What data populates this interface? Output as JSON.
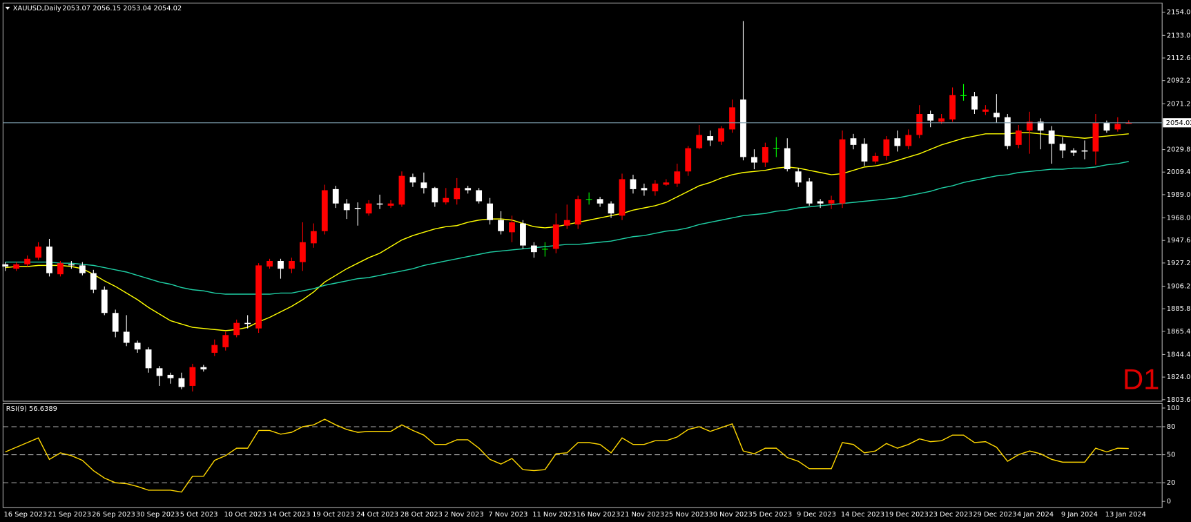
{
  "chart_data": [
    {
      "type": "candlestick",
      "title": "XAUUSD,Daily",
      "subtitle": "2053.07 2056.15 2053.04 2054.02",
      "watermark": "D1",
      "categories": [
        "16 Sep 2023",
        null,
        null,
        null,
        "21 Sep 2023",
        null,
        null,
        null,
        "26 Sep 2023",
        null,
        null,
        null,
        "30 Sep 2023",
        null,
        null,
        null,
        "5 Oct 2023",
        null,
        null,
        null,
        "10 Oct 2023",
        null,
        null,
        null,
        "14 Oct 2023",
        null,
        null,
        null,
        "19 Oct 2023",
        null,
        null,
        null,
        "24 Oct 2023",
        null,
        null,
        null,
        "28 Oct 2023",
        null,
        null,
        null,
        "2 Nov 2023",
        null,
        null,
        null,
        "7 Nov 2023",
        null,
        null,
        null,
        "11 Nov 2023",
        null,
        null,
        null,
        "16 Nov 2023",
        null,
        null,
        null,
        "21 Nov 2023",
        null,
        null,
        null,
        "25 Nov 2023",
        null,
        null,
        null,
        "30 Nov 2023",
        null,
        null,
        null,
        "5 Dec 2023",
        null,
        null,
        null,
        "9 Dec 2023",
        null,
        null,
        null,
        "14 Dec 2023",
        null,
        null,
        null,
        "19 Dec 2023",
        null,
        null,
        null,
        "23 Dec 2023",
        null,
        null,
        null,
        "29 Dec 2023",
        null,
        null,
        null,
        "4 Jan 2024",
        null,
        null,
        null,
        "9 Jan 2024",
        null,
        null,
        null,
        "13 Jan 2024",
        null,
        null
      ],
      "open": [
        1926,
        1922,
        1926,
        1932,
        1942,
        1917,
        1926,
        1925,
        1918,
        1903,
        1882,
        1865,
        1855,
        1849,
        1832,
        1826,
        1823,
        1816,
        1833,
        1846,
        1851,
        1862,
        1873,
        1868,
        1924,
        1929,
        1922,
        1928,
        1945,
        1956,
        1994,
        1981,
        1977,
        1972,
        1981,
        1979,
        1980,
        2005,
        2000,
        1995,
        1982,
        1985,
        1995,
        1993,
        1981,
        1966,
        1955,
        1963,
        1943,
        1940,
        1940,
        1961,
        1962,
        1985,
        1985,
        1981,
        1970,
        2003,
        1995,
        1992,
        1998,
        1999,
        2010,
        2031,
        2042,
        2037,
        2048,
        2075,
        2023,
        2018,
        2031,
        2031,
        2010,
        2001,
        1983,
        1981,
        1981,
        2040,
        2035,
        2019,
        2024,
        2040,
        2033,
        2043,
        2062,
        2055,
        2057,
        2079,
        2078,
        2064,
        2063,
        2059,
        2034,
        2047,
        2055,
        2047,
        2035,
        2029,
        2029,
        2028,
        2054,
        2048,
        2053.07
      ],
      "high": [
        1928,
        1928,
        1934,
        1946,
        1949,
        1929,
        1929,
        1928,
        1921,
        1906,
        1885,
        1880,
        1857,
        1851,
        1834,
        1828,
        1828,
        1836,
        1835,
        1858,
        1865,
        1876,
        1880,
        1927,
        1931,
        1931,
        1932,
        1964,
        1963,
        1998,
        1997,
        1985,
        1982,
        1984,
        1989,
        1984,
        2010,
        2008,
        2009,
        1996,
        1995,
        2004,
        1997,
        1995,
        1986,
        1974,
        1970,
        1966,
        1946,
        1946,
        1972,
        1980,
        1988,
        1991,
        1987,
        1983,
        2008,
        2007,
        1999,
        2002,
        2003,
        2017,
        2033,
        2052,
        2047,
        2051,
        2075,
        2146,
        2030,
        2036,
        2041,
        2040,
        2013,
        2004,
        1985,
        1988,
        2047,
        2044,
        2040,
        2027,
        2042,
        2047,
        2048,
        2070,
        2065,
        2062,
        2086,
        2089,
        2082,
        2070,
        2080,
        2062,
        2052,
        2064,
        2058,
        2051,
        2041,
        2031,
        2038,
        2062,
        2056,
        2059,
        2056.15
      ],
      "low": [
        1920,
        1920,
        1924,
        1930,
        1915,
        1915,
        1922,
        1916,
        1900,
        1880,
        1860,
        1852,
        1846,
        1828,
        1816,
        1818,
        1813,
        1811,
        1829,
        1843,
        1848,
        1860,
        1868,
        1864,
        1922,
        1913,
        1918,
        1920,
        1941,
        1953,
        1977,
        1967,
        1961,
        1970,
        1976,
        1977,
        1978,
        1996,
        1990,
        1978,
        1980,
        1980,
        1990,
        1981,
        1962,
        1953,
        1946,
        1940,
        1932,
        1933,
        1936,
        1958,
        1958,
        1980,
        1978,
        1968,
        1966,
        1990,
        1988,
        1988,
        1997,
        1996,
        2006,
        2030,
        2033,
        2034,
        2045,
        2020,
        2012,
        2014,
        2023,
        2010,
        1996,
        1979,
        1977,
        1976,
        1977,
        2030,
        2015,
        2017,
        2020,
        2028,
        2030,
        2040,
        2050,
        2053,
        2055,
        2074,
        2062,
        2061,
        2054,
        2030,
        2031,
        2026,
        2030,
        2017,
        2022,
        2024,
        2021,
        2016,
        2045,
        2046,
        2053.04
      ],
      "close": [
        1924,
        1926,
        1931,
        1942,
        1918,
        1927,
        1925,
        1918,
        1903,
        1882,
        1865,
        1855,
        1849,
        1832,
        1825,
        1823,
        1815,
        1833,
        1831,
        1853,
        1862,
        1873,
        1872,
        1925,
        1929,
        1922,
        1929,
        1946,
        1956,
        1993,
        1981,
        1975,
        1976,
        1981,
        1980,
        1981,
        2006,
        2000,
        1995,
        1982,
        1986,
        1995,
        1993,
        1983,
        1966,
        1956,
        1964,
        1943,
        1937,
        1940,
        1962,
        1966,
        1985,
        1985,
        1981,
        1972,
        2003,
        1994,
        1993,
        1999,
        2000,
        2010,
        2031,
        2043,
        2038,
        2049,
        2068,
        2023,
        2018,
        2032,
        2031,
        2012,
        2000,
        1981,
        1981,
        1984,
        2039,
        2034,
        2019,
        2024,
        2039,
        2033,
        2043,
        2062,
        2056,
        2058,
        2079,
        2079,
        2066,
        2066,
        2059,
        2033,
        2047,
        2055,
        2047,
        2035,
        2029,
        2027,
        2028,
        2054,
        2047,
        2053,
        2054.02
      ],
      "up_color": "#ff0000",
      "down_color": "#ffffff",
      "flat_color": "#00ff00",
      "overlays": [
        {
          "color": "#ffff00",
          "values": [
            1923,
            1924,
            1924,
            1925,
            1925,
            1925,
            1924,
            1922,
            1917,
            1911,
            1906,
            1900,
            1894,
            1887,
            1881,
            1875,
            1872,
            1869,
            1868,
            1867,
            1866,
            1867,
            1869,
            1874,
            1878,
            1883,
            1888,
            1894,
            1901,
            1910,
            1916,
            1922,
            1927,
            1932,
            1936,
            1942,
            1948,
            1952,
            1955,
            1958,
            1960,
            1961,
            1964,
            1966,
            1967,
            1967,
            1966,
            1963,
            1960,
            1959,
            1960,
            1962,
            1964,
            1966,
            1968,
            1970,
            1972,
            1975,
            1977,
            1979,
            1982,
            1987,
            1992,
            1997,
            2000,
            2004,
            2007,
            2009,
            2010,
            2011,
            2013,
            2014,
            2013,
            2011,
            2009,
            2007,
            2008,
            2011,
            2014,
            2015,
            2017,
            2020,
            2023,
            2026,
            2030,
            2034,
            2037,
            2040,
            2042,
            2044,
            2044,
            2044,
            2045,
            2045,
            2044,
            2043,
            2042,
            2041,
            2040,
            2041,
            2042,
            2043,
            2044
          ]
        },
        {
          "color": "#1fd1a6",
          "values": [
            1928,
            1928,
            1928,
            1928,
            1928,
            1927,
            1927,
            1926,
            1925,
            1923,
            1921,
            1919,
            1916,
            1913,
            1910,
            1908,
            1905,
            1903,
            1902,
            1900,
            1899,
            1899,
            1899,
            1899,
            1899,
            1900,
            1900,
            1902,
            1904,
            1907,
            1909,
            1911,
            1913,
            1914,
            1916,
            1918,
            1920,
            1922,
            1925,
            1927,
            1929,
            1931,
            1933,
            1935,
            1937,
            1938,
            1939,
            1940,
            1941,
            1942,
            1943,
            1944,
            1944,
            1945,
            1946,
            1947,
            1949,
            1951,
            1952,
            1954,
            1956,
            1957,
            1959,
            1962,
            1964,
            1966,
            1968,
            1970,
            1971,
            1972,
            1974,
            1975,
            1977,
            1978,
            1979,
            1980,
            1981,
            1982,
            1983,
            1984,
            1985,
            1986,
            1988,
            1990,
            1992,
            1995,
            1997,
            2000,
            2002,
            2004,
            2006,
            2007,
            2009,
            2010,
            2011,
            2012,
            2012,
            2013,
            2013,
            2014,
            2016,
            2017,
            2019
          ]
        }
      ],
      "current_price": 2054.02,
      "ylim": [
        1802.2,
        2162.3
      ],
      "yticks": [
        {
          "value": 2154,
          "label": "2154.00"
        },
        {
          "value": 2133,
          "label": "2133.00"
        },
        {
          "value": 2112.6,
          "label": "2112.60"
        },
        {
          "value": 2092.2,
          "label": "2092.20"
        },
        {
          "value": 2071.2,
          "label": "2071.20"
        },
        {
          "value": 2029.8,
          "label": "2029.80"
        },
        {
          "value": 2009.4,
          "label": "2009.40"
        },
        {
          "value": 1989,
          "label": "1989.00"
        },
        {
          "value": 1968,
          "label": "1968.00"
        },
        {
          "value": 1947.6,
          "label": "1947.60"
        },
        {
          "value": 1927.2,
          "label": "1927.20"
        },
        {
          "value": 1906.2,
          "label": "1906.20"
        },
        {
          "value": 1885.8,
          "label": "1885.80"
        },
        {
          "value": 1865.4,
          "label": "1865.40"
        },
        {
          "value": 1844.4,
          "label": "1844.40"
        },
        {
          "value": 1824,
          "label": "1824.00"
        },
        {
          "value": 1803.6,
          "label": "1803.60"
        }
      ]
    },
    {
      "type": "line",
      "title": "RSI(9) 56.6389",
      "color": "#ffd700",
      "values": [
        53,
        58,
        63,
        68,
        45,
        52,
        49,
        44,
        33,
        25,
        20,
        19,
        16,
        12,
        12,
        12,
        10,
        27,
        27,
        44,
        49,
        57,
        57,
        76,
        76,
        72,
        74,
        80,
        82,
        88,
        82,
        77,
        74,
        75,
        75,
        75,
        82,
        76,
        71,
        61,
        61,
        66,
        66,
        57,
        45,
        40,
        46,
        34,
        33,
        34,
        51,
        52,
        63,
        63,
        61,
        52,
        68,
        61,
        61,
        65,
        65,
        69,
        77,
        80,
        75,
        79,
        83,
        54,
        51,
        57,
        57,
        47,
        43,
        35,
        35,
        35,
        63,
        61,
        52,
        54,
        62,
        57,
        61,
        67,
        64,
        65,
        71,
        71,
        63,
        64,
        58,
        43,
        50,
        54,
        51,
        45,
        42,
        42,
        42,
        57,
        53,
        57,
        56.6389
      ],
      "ylim": [
        -6.6,
        104.9
      ],
      "yticks": [
        100,
        80,
        50,
        20,
        0
      ],
      "levels": [
        80,
        50,
        20
      ]
    }
  ]
}
